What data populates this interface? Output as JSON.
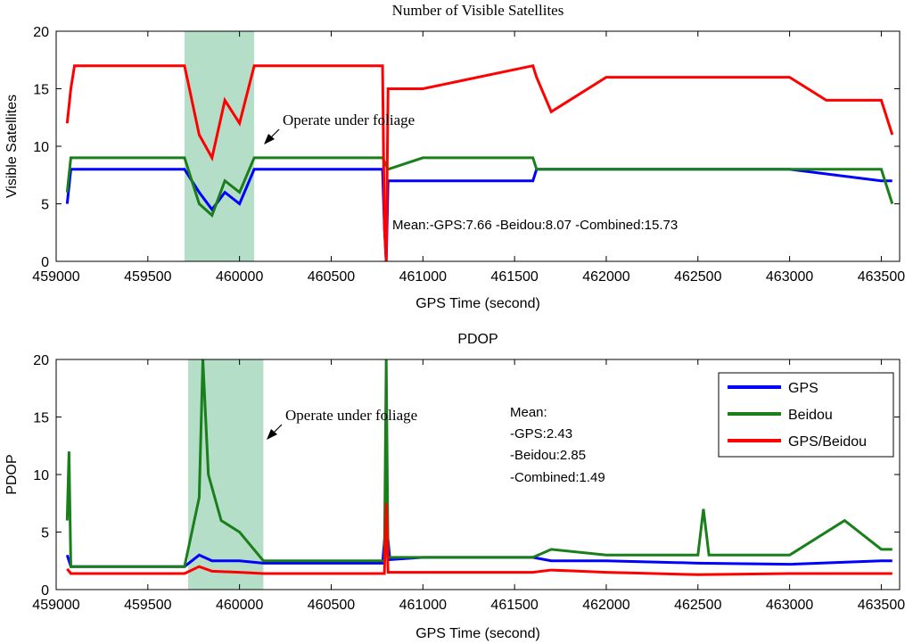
{
  "colors": {
    "gps": "#0000ff",
    "beidou": "#1a7f1a",
    "combined": "#ff0000",
    "foliage": "#a8d8bf"
  },
  "chart_data": [
    {
      "type": "line",
      "title": "Number of Visible Satellites",
      "xlabel": "GPS Time (second)",
      "ylabel": "Visible Satellites",
      "xlim": [
        459000,
        463600
      ],
      "ylim": [
        0,
        20
      ],
      "xticks": [
        459000,
        459500,
        460000,
        460500,
        461000,
        461500,
        462000,
        462500,
        463000,
        463500
      ],
      "yticks": [
        0,
        5,
        10,
        15,
        20
      ],
      "shaded_range": [
        459700,
        460080
      ],
      "annotations": {
        "foliage": "Operate under foliage",
        "mean": "Mean:-GPS:7.66 -Beidou:8.07 -Combined:15.73"
      },
      "series": [
        {
          "name": "GPS",
          "color_key": "gps",
          "x": [
            459060,
            459080,
            459700,
            459780,
            459850,
            459920,
            460000,
            460080,
            460500,
            460780,
            460790,
            460800,
            460810,
            461000,
            461600,
            461620,
            462000,
            462500,
            463000,
            463500,
            463560
          ],
          "values": [
            5,
            8,
            8,
            6,
            4.5,
            6,
            5,
            8,
            8,
            8,
            3,
            0,
            7,
            7,
            7,
            8,
            8,
            8,
            8,
            7,
            7
          ]
        },
        {
          "name": "Beidou",
          "color_key": "beidou",
          "x": [
            459060,
            459080,
            459700,
            459780,
            459850,
            459920,
            460000,
            460080,
            460500,
            460780,
            460810,
            461000,
            461600,
            461620,
            462000,
            462500,
            463000,
            463500,
            463560
          ],
          "values": [
            6,
            9,
            9,
            5,
            4,
            7,
            6,
            9,
            9,
            9,
            8,
            9,
            9,
            8,
            8,
            8,
            8,
            8,
            5
          ]
        },
        {
          "name": "GPS/Beidou",
          "color_key": "combined",
          "x": [
            459060,
            459080,
            459100,
            459700,
            459780,
            459850,
            459920,
            460000,
            460080,
            460500,
            460780,
            460790,
            460800,
            460810,
            461000,
            461600,
            461620,
            461700,
            462000,
            462500,
            463000,
            463200,
            463500,
            463560
          ],
          "values": [
            12,
            15,
            17,
            17,
            11,
            9,
            14,
            12,
            17,
            17,
            17,
            3,
            0,
            15,
            15,
            17,
            16,
            13,
            16,
            16,
            16,
            14,
            14,
            11
          ]
        }
      ]
    },
    {
      "type": "line",
      "title": "PDOP",
      "xlabel": "GPS Time (second)",
      "ylabel": "PDOP",
      "xlim": [
        459000,
        463600
      ],
      "ylim": [
        0,
        20
      ],
      "xticks": [
        459000,
        459500,
        460000,
        460500,
        461000,
        461500,
        462000,
        462500,
        463000,
        463500
      ],
      "yticks": [
        0,
        5,
        10,
        15,
        20
      ],
      "shaded_range": [
        459720,
        460130
      ],
      "annotations": {
        "foliage": "Operate under foliage",
        "mean_lines": [
          "Mean:",
          "-GPS:2.43",
          "-Beidou:2.85",
          "-Combined:1.49"
        ]
      },
      "legend": {
        "placement": "top-right",
        "entries": [
          "GPS",
          "Beidou",
          "GPS/Beidou"
        ]
      },
      "series": [
        {
          "name": "GPS",
          "color_key": "gps",
          "x": [
            459060,
            459080,
            459700,
            459780,
            459850,
            460000,
            460130,
            460500,
            460780,
            460800,
            460820,
            461000,
            461600,
            461700,
            462000,
            462500,
            463000,
            463500,
            463560
          ],
          "values": [
            3,
            2,
            2,
            3,
            2.5,
            2.5,
            2.3,
            2.3,
            2.3,
            6,
            2.6,
            2.8,
            2.8,
            2.5,
            2.5,
            2.3,
            2.2,
            2.5,
            2.5
          ]
        },
        {
          "name": "Beidou",
          "color_key": "beidou",
          "x": [
            459060,
            459070,
            459080,
            459700,
            459780,
            459800,
            459830,
            459900,
            460000,
            460130,
            460500,
            460790,
            460800,
            460810,
            461000,
            461500,
            461600,
            461700,
            462000,
            462500,
            462530,
            462560,
            463000,
            463300,
            463500,
            463560
          ],
          "values": [
            6,
            12,
            2,
            2,
            8,
            20,
            10,
            6,
            5,
            2.5,
            2.5,
            2.5,
            20,
            2.8,
            2.8,
            2.8,
            2.8,
            3.5,
            3,
            3,
            7,
            3,
            3,
            6,
            3.5,
            3.5
          ]
        },
        {
          "name": "GPS/Beidou",
          "color_key": "combined",
          "x": [
            459060,
            459080,
            459700,
            459780,
            459850,
            460000,
            460130,
            460500,
            460790,
            460800,
            460810,
            461000,
            461600,
            461700,
            462000,
            462500,
            463000,
            463500,
            463560
          ],
          "values": [
            1.8,
            1.4,
            1.4,
            2,
            1.6,
            1.5,
            1.4,
            1.4,
            1.4,
            7.5,
            1.5,
            1.5,
            1.5,
            1.7,
            1.5,
            1.3,
            1.4,
            1.4,
            1.4
          ]
        }
      ]
    }
  ]
}
